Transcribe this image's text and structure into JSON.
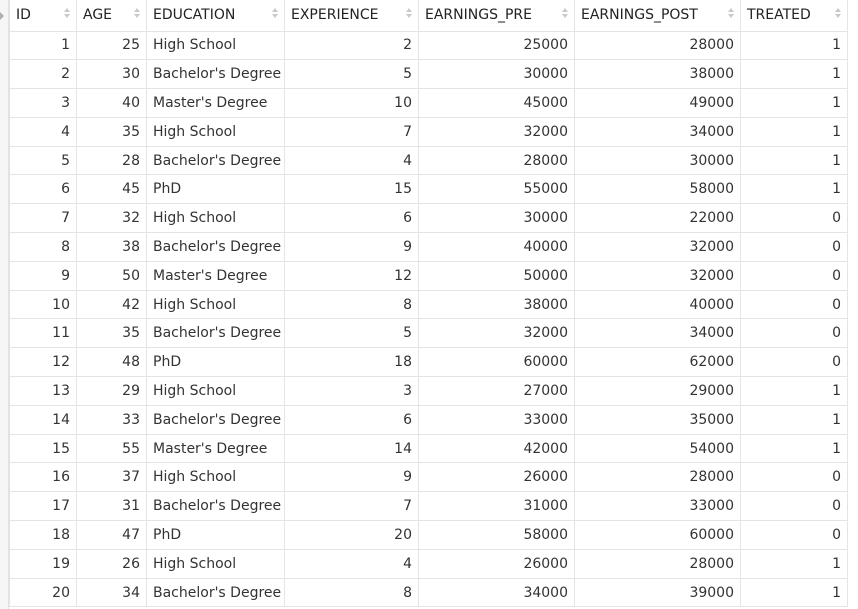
{
  "table": {
    "columns": [
      {
        "key": "id",
        "label": "ID",
        "align": "num"
      },
      {
        "key": "age",
        "label": "AGE",
        "align": "num"
      },
      {
        "key": "education",
        "label": "EDUCATION",
        "align": "txt"
      },
      {
        "key": "experience",
        "label": "EXPERIENCE",
        "align": "num"
      },
      {
        "key": "earnings_pre",
        "label": "EARNINGS_PRE",
        "align": "num"
      },
      {
        "key": "earnings_post",
        "label": "EARNINGS_POST",
        "align": "num"
      },
      {
        "key": "treated",
        "label": "TREATED",
        "align": "num"
      }
    ],
    "rows": [
      [
        "1",
        "25",
        "High School",
        "2",
        "25000",
        "28000",
        "1"
      ],
      [
        "2",
        "30",
        "Bachelor's Degree",
        "5",
        "30000",
        "38000",
        "1"
      ],
      [
        "3",
        "40",
        "Master's Degree",
        "10",
        "45000",
        "49000",
        "1"
      ],
      [
        "4",
        "35",
        "High School",
        "7",
        "32000",
        "34000",
        "1"
      ],
      [
        "5",
        "28",
        "Bachelor's Degree",
        "4",
        "28000",
        "30000",
        "1"
      ],
      [
        "6",
        "45",
        "PhD",
        "15",
        "55000",
        "58000",
        "1"
      ],
      [
        "7",
        "32",
        "High School",
        "6",
        "30000",
        "22000",
        "0"
      ],
      [
        "8",
        "38",
        "Bachelor's Degree",
        "9",
        "40000",
        "32000",
        "0"
      ],
      [
        "9",
        "50",
        "Master's Degree",
        "12",
        "50000",
        "32000",
        "0"
      ],
      [
        "10",
        "42",
        "High School",
        "8",
        "38000",
        "40000",
        "0"
      ],
      [
        "11",
        "35",
        "Bachelor's Degree",
        "5",
        "32000",
        "34000",
        "0"
      ],
      [
        "12",
        "48",
        "PhD",
        "18",
        "60000",
        "62000",
        "0"
      ],
      [
        "13",
        "29",
        "High School",
        "3",
        "27000",
        "29000",
        "1"
      ],
      [
        "14",
        "33",
        "Bachelor's Degree",
        "6",
        "33000",
        "35000",
        "1"
      ],
      [
        "15",
        "55",
        "Master's Degree",
        "14",
        "42000",
        "54000",
        "1"
      ],
      [
        "16",
        "37",
        "High School",
        "9",
        "26000",
        "28000",
        "0"
      ],
      [
        "17",
        "31",
        "Bachelor's Degree",
        "7",
        "31000",
        "33000",
        "0"
      ],
      [
        "18",
        "47",
        "PhD",
        "20",
        "58000",
        "60000",
        "0"
      ],
      [
        "19",
        "26",
        "High School",
        "4",
        "26000",
        "28000",
        "1"
      ],
      [
        "20",
        "34",
        "Bachelor's Degree",
        "8",
        "34000",
        "39000",
        "1"
      ]
    ]
  }
}
